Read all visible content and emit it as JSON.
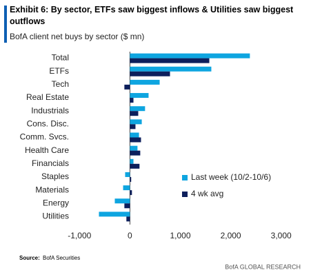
{
  "chart_data": {
    "type": "bar",
    "orientation": "horizontal",
    "title": "Exhibit 6: By sector, ETFs saw biggest inflows & Utilities saw biggest outflows",
    "subtitle": "BofA client net buys by sector ($ mn)",
    "categories": [
      "Total",
      "ETFs",
      "Tech",
      "Real Estate",
      "Industrials",
      "Cons. Disc.",
      "Comm. Svcs.",
      "Health Care",
      "Financials",
      "Staples",
      "Materials",
      "Energy",
      "Utilities"
    ],
    "series": [
      {
        "name": "Last week (10/2-10/6)",
        "color": "#0ea5e0",
        "values": [
          2380,
          1615,
          590,
          370,
          300,
          235,
          180,
          150,
          70,
          -95,
          -135,
          -300,
          -615
        ]
      },
      {
        "name": "4 wk avg",
        "color": "#0d1f5c",
        "values": [
          1575,
          795,
          -110,
          70,
          165,
          110,
          220,
          205,
          190,
          25,
          40,
          -110,
          -70
        ]
      }
    ],
    "xlim": [
      -1100,
      3100
    ],
    "xticks": [
      {
        "value": -1000,
        "label": "-1,000"
      },
      0,
      {
        "value": 1000,
        "label": "1,000"
      },
      {
        "value": 2000,
        "label": "2,000"
      },
      {
        "value": 3000,
        "label": "3,000"
      }
    ],
    "grid": false,
    "legend": "right",
    "source_label": "Source:",
    "source": "BofA Securities",
    "footer": "BofA GLOBAL RESEARCH"
  }
}
